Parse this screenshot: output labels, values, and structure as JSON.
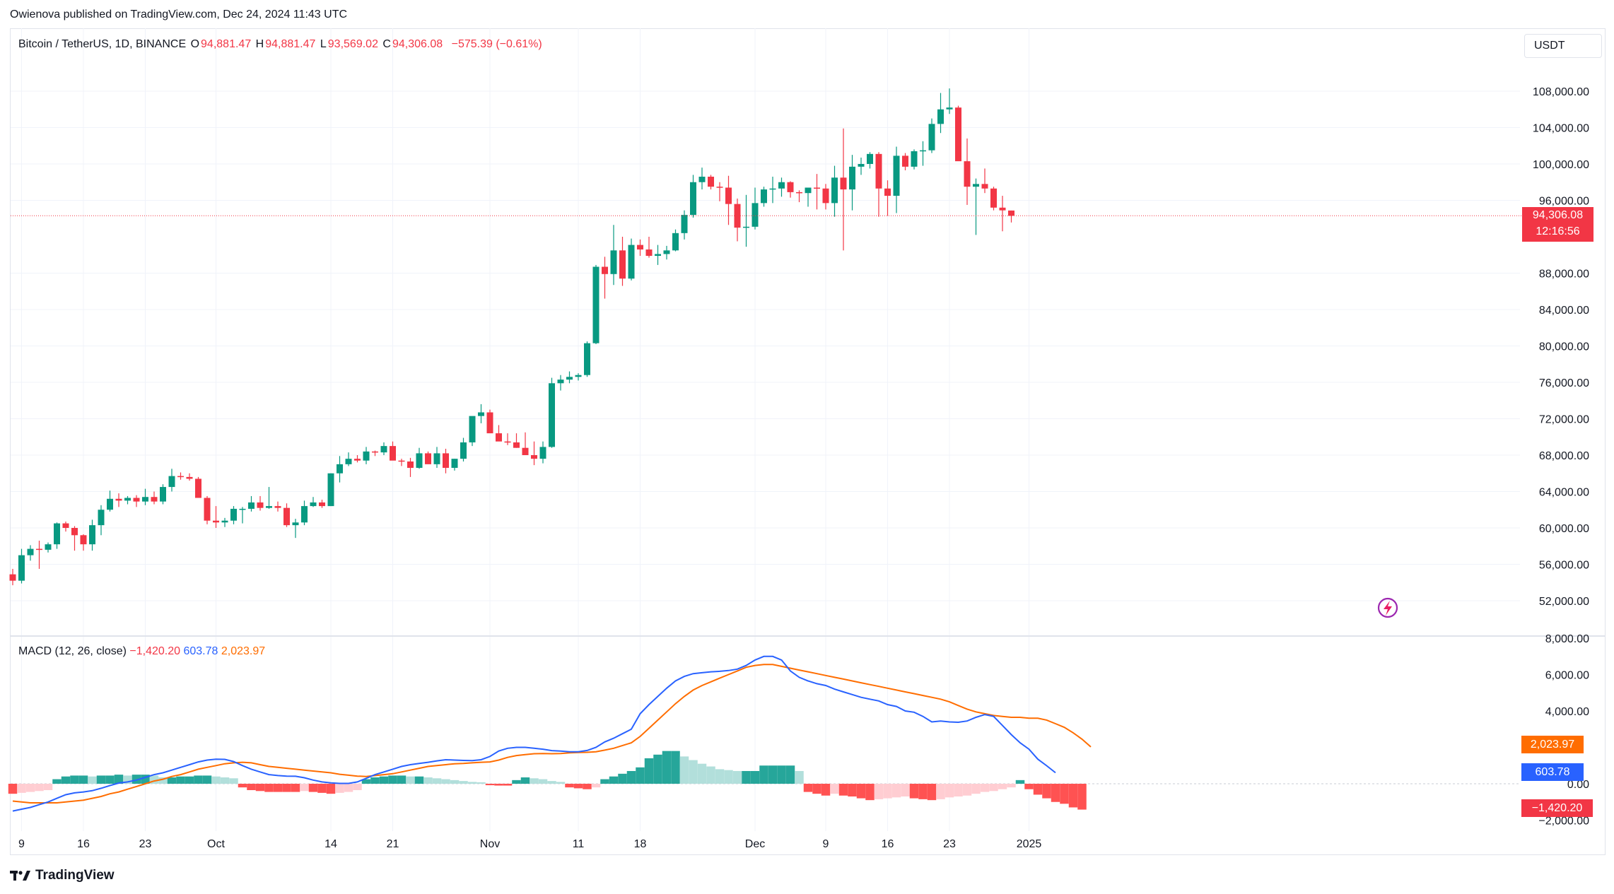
{
  "header": {
    "publisher_line": "Owienova published on TradingView.com, Dec 24, 2024 11:43 UTC"
  },
  "legend": {
    "symbol": "Bitcoin / TetherUS, 1D, BINANCE",
    "open_label": "O",
    "open": "94,881.47",
    "high_label": "H",
    "high": "94,881.47",
    "low_label": "L",
    "low": "93,569.02",
    "close_label": "C",
    "close": "94,306.08",
    "change": "−575.39 (−0.61%)"
  },
  "currency_button": "USDT",
  "last_price_tag": {
    "price": "94,306.08",
    "countdown": "12:16:56"
  },
  "macd_legend": {
    "label": "MACD (12, 26, close)",
    "histogram": "−1,420.20",
    "macd": "603.78",
    "signal": "2,023.97"
  },
  "macd_tags": {
    "signal": "2,023.97",
    "macd": "603.78",
    "histogram": "−1,420.20"
  },
  "footer": {
    "brand": "TradingView"
  },
  "colors": {
    "up": "#089981",
    "down": "#f23645",
    "macd_line": "#2962ff",
    "signal_line": "#ff6d00",
    "hist_up_strong": "#26a69a",
    "hist_up_weak": "#b2dfdb",
    "hist_down_strong": "#ff5252",
    "hist_down_weak": "#ffcdd2"
  },
  "chart_data": {
    "type": "candlestick",
    "title": "Bitcoin / TetherUS, 1D, BINANCE",
    "price_axis": {
      "range": [
        48400,
        112400
      ],
      "ticks": [
        108000,
        104000,
        100000,
        96000,
        88000,
        84000,
        80000,
        76000,
        72000,
        68000,
        64000,
        60000,
        56000,
        52000
      ],
      "tick_labels": [
        "108,000.00",
        "104,000.00",
        "100,000.00",
        "96,000.00",
        "88,000.00",
        "84,000.00",
        "80,000.00",
        "76,000.00",
        "72,000.00",
        "68,000.00",
        "64,000.00",
        "60,000.00",
        "56,000.00",
        "52,000.00"
      ]
    },
    "time_axis": {
      "first_date": "2024-09-08",
      "labels": [
        {
          "text": "9",
          "day": 1
        },
        {
          "text": "16",
          "day": 8
        },
        {
          "text": "23",
          "day": 15
        },
        {
          "text": "Oct",
          "day": 23
        },
        {
          "text": "14",
          "day": 36
        },
        {
          "text": "21",
          "day": 43
        },
        {
          "text": "Nov",
          "day": 54
        },
        {
          "text": "11",
          "day": 64
        },
        {
          "text": "18",
          "day": 71
        },
        {
          "text": "Dec",
          "day": 84
        },
        {
          "text": "9",
          "day": 92
        },
        {
          "text": "16",
          "day": 99
        },
        {
          "text": "23",
          "day": 106
        },
        {
          "text": "2025",
          "day": 115
        }
      ]
    },
    "candles": [
      [
        54900,
        55500,
        53700,
        54200
      ],
      [
        54200,
        57700,
        53900,
        57000
      ],
      [
        57000,
        58100,
        56400,
        57700
      ],
      [
        57700,
        58600,
        55500,
        57600
      ],
      [
        57600,
        58400,
        57300,
        58200
      ],
      [
        58200,
        60600,
        57700,
        60500
      ],
      [
        60500,
        60700,
        59600,
        60000
      ],
      [
        60000,
        60200,
        57500,
        59200
      ],
      [
        59200,
        59300,
        57500,
        58200
      ],
      [
        58200,
        60900,
        57500,
        60300
      ],
      [
        60300,
        62500,
        59200,
        62000
      ],
      [
        62000,
        64100,
        61800,
        63200
      ],
      [
        63200,
        63800,
        62300,
        63000
      ],
      [
        63000,
        63500,
        62600,
        63300
      ],
      [
        63300,
        63600,
        62300,
        62900
      ],
      [
        62900,
        64300,
        62500,
        63400
      ],
      [
        63400,
        64000,
        62600,
        62900
      ],
      [
        62900,
        64800,
        62600,
        64500
      ],
      [
        64500,
        66500,
        64000,
        65700
      ],
      [
        65700,
        66100,
        65300,
        65600
      ],
      [
        65600,
        66000,
        65200,
        65400
      ],
      [
        65400,
        65600,
        63300,
        63300
      ],
      [
        63300,
        63500,
        60400,
        60800
      ],
      [
        60800,
        62400,
        60000,
        60600
      ],
      [
        60600,
        61100,
        60100,
        60800
      ],
      [
        60800,
        62400,
        60400,
        62100
      ],
      [
        62100,
        62300,
        60500,
        62100
      ],
      [
        62100,
        63500,
        61800,
        62800
      ],
      [
        62800,
        63500,
        61900,
        62200
      ],
      [
        62200,
        64500,
        62100,
        62400
      ],
      [
        62400,
        62900,
        61800,
        62200
      ],
      [
        62200,
        62700,
        60100,
        60300
      ],
      [
        60300,
        61000,
        58900,
        60600
      ],
      [
        60600,
        63000,
        60300,
        62400
      ],
      [
        62400,
        63400,
        62300,
        62800
      ],
      [
        62800,
        63100,
        62200,
        62400
      ],
      [
        62400,
        66000,
        62400,
        66000
      ],
      [
        66000,
        67900,
        65000,
        67000
      ],
      [
        67000,
        68300,
        66800,
        67600
      ],
      [
        67600,
        68000,
        67200,
        67400
      ],
      [
        67400,
        68900,
        67000,
        68400
      ],
      [
        68400,
        68500,
        67900,
        68300
      ],
      [
        68300,
        69400,
        68000,
        69000
      ],
      [
        69000,
        69500,
        67800,
        67400
      ],
      [
        67400,
        67600,
        66800,
        67300
      ],
      [
        67300,
        67700,
        65600,
        66600
      ],
      [
        66600,
        68800,
        66500,
        68200
      ],
      [
        68200,
        68400,
        67500,
        67000
      ],
      [
        67000,
        68900,
        66600,
        68200
      ],
      [
        68200,
        68700,
        66000,
        66600
      ],
      [
        66600,
        67600,
        66300,
        67600
      ],
      [
        67600,
        69900,
        67300,
        69400
      ],
      [
        69400,
        72200,
        69000,
        72300
      ],
      [
        72300,
        73600,
        71500,
        72700
      ],
      [
        72700,
        73000,
        70600,
        70400
      ],
      [
        70400,
        71300,
        69800,
        69500
      ],
      [
        69500,
        70400,
        69100,
        69400
      ],
      [
        69400,
        70400,
        68800,
        68800
      ],
      [
        68800,
        70500,
        68500,
        68000
      ],
      [
        68000,
        69500,
        66900,
        67600
      ],
      [
        67600,
        69500,
        67100,
        68900
      ],
      [
        68900,
        76500,
        68800,
        75900
      ],
      [
        75900,
        76800,
        75100,
        76300
      ],
      [
        76300,
        77200,
        75900,
        76600
      ],
      [
        76600,
        77000,
        76200,
        76800
      ],
      [
        76800,
        80500,
        76600,
        80300
      ],
      [
        80300,
        88900,
        80200,
        88700
      ],
      [
        88700,
        89800,
        85200,
        87900
      ],
      [
        87900,
        93300,
        86700,
        90500
      ],
      [
        90500,
        92000,
        86600,
        87400
      ],
      [
        87400,
        91800,
        87200,
        91100
      ],
      [
        91100,
        91700,
        89900,
        90600
      ],
      [
        90600,
        92000,
        89700,
        89900
      ],
      [
        89900,
        91100,
        88900,
        90100
      ],
      [
        90100,
        91000,
        89500,
        90500
      ],
      [
        90500,
        92800,
        90400,
        92400
      ],
      [
        92400,
        94900,
        91700,
        94400
      ],
      [
        94400,
        98800,
        94100,
        98000
      ],
      [
        98000,
        99600,
        97200,
        98600
      ],
      [
        98600,
        98800,
        97200,
        97500
      ],
      [
        97500,
        98000,
        95900,
        97400
      ],
      [
        97400,
        98700,
        93300,
        95600
      ],
      [
        95600,
        96200,
        91500,
        93000
      ],
      [
        93000,
        96600,
        90900,
        93100
      ],
      [
        93100,
        97400,
        92800,
        95700
      ],
      [
        95700,
        97500,
        95300,
        97200
      ],
      [
        97200,
        98600,
        95700,
        97300
      ],
      [
        97300,
        98500,
        96400,
        98000
      ],
      [
        98000,
        98100,
        96300,
        96900
      ],
      [
        96900,
        97100,
        95800,
        96800
      ],
      [
        96800,
        96900,
        95300,
        97400
      ],
      [
        97400,
        98900,
        95000,
        97300
      ],
      [
        97300,
        97800,
        95000,
        95700
      ],
      [
        95700,
        99800,
        94200,
        98500
      ],
      [
        98500,
        103900,
        90500,
        97200
      ],
      [
        97200,
        101000,
        94900,
        99700
      ],
      [
        99700,
        100700,
        98800,
        100000
      ],
      [
        100000,
        101300,
        99500,
        101100
      ],
      [
        101100,
        101300,
        94200,
        97300
      ],
      [
        97300,
        98200,
        94300,
        96500
      ],
      [
        96500,
        101900,
        94600,
        100900
      ],
      [
        100900,
        101200,
        99300,
        99700
      ],
      [
        99700,
        101600,
        99400,
        101400
      ],
      [
        101400,
        102500,
        99800,
        101500
      ],
      [
        101500,
        105000,
        101200,
        104400
      ],
      [
        104400,
        107800,
        103400,
        106000
      ],
      [
        106000,
        108300,
        105500,
        106200
      ],
      [
        106200,
        106400,
        100600,
        100300
      ],
      [
        100300,
        102800,
        95500,
        97500
      ],
      [
        97500,
        98400,
        92200,
        97800
      ],
      [
        97800,
        99500,
        96800,
        97300
      ],
      [
        97300,
        97500,
        94900,
        95200
      ],
      [
        95200,
        96500,
        92600,
        94900
      ],
      [
        94881,
        94881,
        93569,
        94306
      ]
    ],
    "macd": {
      "label": "MACD (12, 26, close)",
      "axis_range": [
        -3000,
        8600
      ],
      "ticks": [
        8000,
        6000,
        4000,
        0.0,
        -2000
      ],
      "tick_labels": [
        "8,000.00",
        "6,000.00",
        "4,000.00",
        "0.00",
        "−2,000.00"
      ],
      "macd_line": [
        -1500,
        -1400,
        -1300,
        -1150,
        -1000,
        -800,
        -600,
        -500,
        -450,
        -380,
        -250,
        -100,
        40,
        100,
        200,
        350,
        500,
        600,
        750,
        900,
        1050,
        1200,
        1300,
        1350,
        1340,
        1220,
        1000,
        800,
        650,
        500,
        450,
        420,
        410,
        330,
        200,
        100,
        50,
        20,
        20,
        100,
        300,
        500,
        650,
        800,
        950,
        1050,
        1120,
        1180,
        1260,
        1320,
        1300,
        1280,
        1270,
        1320,
        1500,
        1800,
        1950,
        2000,
        2000,
        1950,
        1900,
        1820,
        1800,
        1760,
        1760,
        1830,
        2000,
        2300,
        2500,
        2750,
        3000,
        3850,
        4350,
        4800,
        5250,
        5650,
        5900,
        6050,
        6100,
        6150,
        6180,
        6220,
        6300,
        6500,
        6800,
        7000,
        7000,
        6800,
        6200,
        5850,
        5650,
        5500,
        5400,
        5200,
        5050,
        4900,
        4750,
        4650,
        4550,
        4350,
        4250,
        4000,
        3930,
        3700,
        3400,
        3450,
        3400,
        3380,
        3450,
        3650,
        3800,
        3700,
        3200,
        2700,
        2250,
        1900,
        1350,
        990,
        604
      ],
      "signal_line": [
        -950,
        -1000,
        -1050,
        -1050,
        -1050,
        -1050,
        -1000,
        -950,
        -900,
        -800,
        -700,
        -550,
        -450,
        -300,
        -150,
        0,
        150,
        250,
        400,
        500,
        650,
        800,
        900,
        1000,
        1100,
        1150,
        1180,
        1150,
        1050,
        950,
        900,
        850,
        800,
        750,
        700,
        650,
        600,
        520,
        470,
        420,
        400,
        450,
        500,
        550,
        650,
        750,
        850,
        950,
        1000,
        1050,
        1100,
        1120,
        1150,
        1180,
        1200,
        1300,
        1450,
        1550,
        1600,
        1650,
        1660,
        1650,
        1660,
        1700,
        1720,
        1730,
        1760,
        1850,
        1950,
        2100,
        2250,
        2600,
        3050,
        3500,
        3950,
        4400,
        4800,
        5150,
        5400,
        5600,
        5800,
        6000,
        6200,
        6400,
        6500,
        6550,
        6550,
        6450,
        6350,
        6250,
        6150,
        6050,
        5950,
        5850,
        5750,
        5650,
        5550,
        5450,
        5350,
        5250,
        5150,
        5050,
        4950,
        4850,
        4750,
        4650,
        4500,
        4300,
        4100,
        3950,
        3850,
        3750,
        3700,
        3650,
        3650,
        3600,
        3600,
        3500,
        3300,
        3100,
        2800,
        2450,
        2024
      ],
      "histogram": [
        -550,
        -500,
        -450,
        -400,
        -350,
        250,
        400,
        450,
        450,
        400,
        450,
        450,
        500,
        450,
        500,
        500,
        450,
        350,
        350,
        400,
        400,
        450,
        450,
        400,
        350,
        300,
        -200,
        -350,
        -400,
        -450,
        -450,
        -450,
        -450,
        -400,
        -450,
        -500,
        -550,
        -500,
        -450,
        -350,
        250,
        350,
        400,
        450,
        450,
        400,
        400,
        350,
        300,
        250,
        200,
        150,
        100,
        80,
        -80,
        -100,
        -100,
        200,
        350,
        300,
        250,
        150,
        100,
        -200,
        -250,
        -300,
        -200,
        250,
        400,
        550,
        700,
        900,
        1400,
        1600,
        1800,
        1800,
        1500,
        1300,
        1100,
        950,
        800,
        750,
        700,
        700,
        700,
        1000,
        1000,
        1000,
        1000,
        700,
        -450,
        -550,
        -650,
        -550,
        -650,
        -700,
        -800,
        -900,
        -850,
        -800,
        -750,
        -700,
        -800,
        -850,
        -900,
        -850,
        -750,
        -700,
        -650,
        -550,
        -450,
        -400,
        -300,
        -200,
        200,
        -300,
        -600,
        -800,
        -1000,
        -1100,
        -1300,
        -1420
      ]
    }
  }
}
